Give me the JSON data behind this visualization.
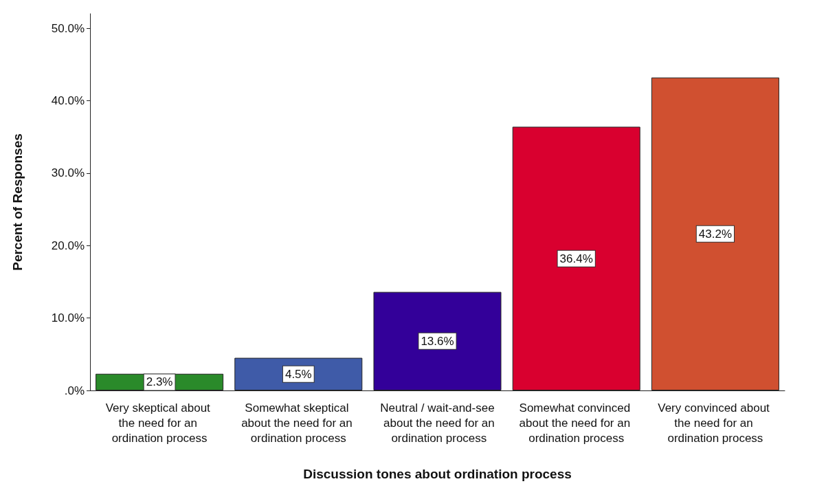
{
  "chart_data": {
    "type": "bar",
    "xlabel": "Discussion tones about ordination process",
    "ylabel": "Percent of Responses",
    "categories": [
      "Very skeptical about the need for an ordination process",
      "Somewhat skeptical about the need for an ordination process",
      "Neutral / wait-and-see about the need for an ordination process",
      "Somewhat convinced about the need for an ordination process",
      "Very convinced about the need for an ordination process"
    ],
    "values": [
      2.3,
      4.5,
      13.6,
      36.4,
      43.2
    ],
    "colors": [
      "#2a8a2a",
      "#3f5ba8",
      "#330099",
      "#d9002f",
      "#d05030"
    ],
    "value_labels": [
      "2.3%",
      "4.5%",
      "13.6%",
      "36.4%",
      "43.2%"
    ],
    "ylim": [
      0,
      52
    ],
    "yticks": [
      {
        "value": 0,
        "label": ".0%"
      },
      {
        "value": 10,
        "label": "10.0%"
      },
      {
        "value": 20,
        "label": "20.0%"
      },
      {
        "value": 30,
        "label": "30.0%"
      },
      {
        "value": 40,
        "label": "40.0%"
      },
      {
        "value": 50,
        "label": "50.0%"
      }
    ],
    "grid": false
  }
}
